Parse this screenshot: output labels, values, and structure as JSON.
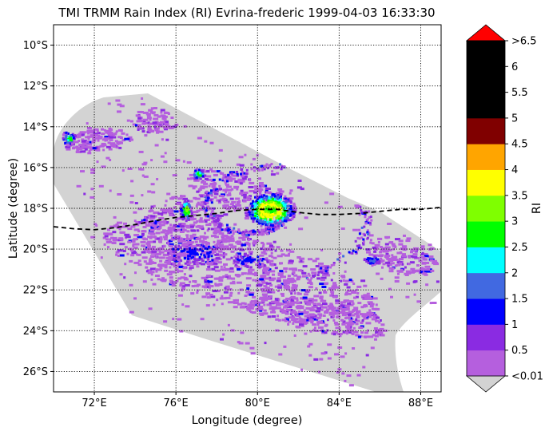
{
  "chart_data": {
    "type": "heatmap",
    "title": "TMI TRMM Rain Index (RI) Evrina-frederic 1999-04-03 16:33:30",
    "xlabel": "Longitude (degree)",
    "ylabel": "Latitude (degree)",
    "xlim": [
      70,
      89
    ],
    "ylim": [
      -27,
      -9
    ],
    "x_ticks": [
      72,
      76,
      80,
      84,
      88
    ],
    "x_tick_labels": [
      "72°E",
      "76°E",
      "80°E",
      "84°E",
      "88°E"
    ],
    "y_ticks": [
      -10,
      -12,
      -14,
      -16,
      -18,
      -20,
      -22,
      -24,
      -26
    ],
    "y_tick_labels": [
      "10°S",
      "12°S",
      "14°S",
      "16°S",
      "18°S",
      "20°S",
      "22°S",
      "24°S",
      "26°S"
    ],
    "grid": true,
    "colorbar": {
      "label": "RI",
      "tick_labels": [
        "<0.01",
        "0.5",
        "1",
        "1.5",
        "2",
        "2.5",
        "3",
        "3.5",
        "4",
        "4.5",
        "5",
        "5.5",
        "6",
        ">6.5"
      ],
      "colors": [
        "#b55fde",
        "#8a2be2",
        "#0000ff",
        "#4169e1",
        "#00ffff",
        "#00ff00",
        "#7fff00",
        "#ffff00",
        "#ffa500",
        "#800000",
        "#000000",
        "#000000",
        "#000000"
      ],
      "under_color": "#d3d3d3",
      "over_color": "#ff0000"
    },
    "swath_color": "#d3d3d3",
    "track": {
      "style": "dashed",
      "lon": [
        70,
        71,
        72,
        73,
        74,
        75,
        76,
        77,
        78,
        79,
        80,
        81,
        82,
        83,
        84,
        85,
        86,
        87,
        88,
        89
      ],
      "lat": [
        -18.9,
        -19.0,
        -19.05,
        -18.95,
        -18.8,
        -18.6,
        -18.45,
        -18.35,
        -18.25,
        -18.1,
        -18.05,
        -18.05,
        -18.2,
        -18.3,
        -18.3,
        -18.25,
        -18.15,
        -18.05,
        -18.05,
        -17.95
      ]
    }
  }
}
